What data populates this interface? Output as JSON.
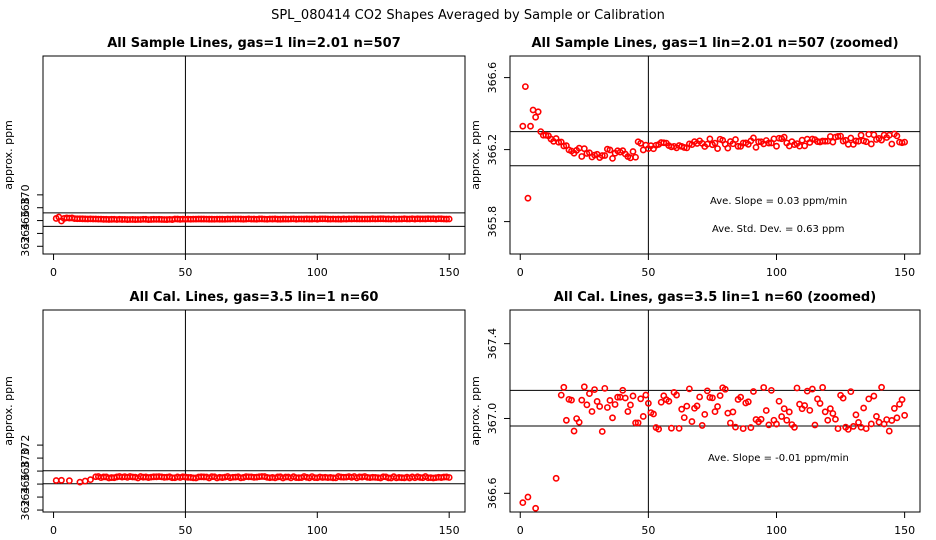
{
  "figure_title": "SPL_080414  CO2 Shapes Averaged by Sample or Calibration",
  "chart_data": [
    {
      "type": "scatter",
      "title": "All Sample Lines, gas=1 lin=2.01 n=507",
      "ylabel": "approx. ppm",
      "xlim": [
        -4,
        156
      ],
      "ylim": [
        360.8,
        391.6
      ],
      "xticks": [
        0,
        50,
        100,
        150
      ],
      "yticks": [
        362,
        364,
        366,
        368,
        370
      ],
      "vline": 50,
      "hlines": [
        365.1,
        367.2
      ],
      "gen": {
        "kind": "sample",
        "base": 366.2,
        "scale": 1
      }
    },
    {
      "type": "scatter",
      "title": "All Sample Lines, gas=1 lin=2.01 n=507 (zoomed)",
      "ylabel": "approx. ppm",
      "xlim": [
        -4,
        156
      ],
      "ylim": [
        365.62,
        366.72
      ],
      "xticks": [
        0,
        50,
        100,
        150
      ],
      "yticks": [
        365.8,
        366.2,
        366.6
      ],
      "vline": 50,
      "hlines": [
        366.11,
        366.3
      ],
      "annotations": [
        "Ave. Slope =  0.03  ppm/min",
        "Ave. Std. Dev. =  0.63  ppm"
      ],
      "gen": {
        "kind": "sample",
        "base": 366.2,
        "scale": 1
      }
    },
    {
      "type": "scatter",
      "title": "All Cal. Lines, gas=3.5 lin=1 n=60",
      "ylabel": "approx. ppm",
      "xlim": [
        -4,
        156
      ],
      "ylim": [
        361.7,
        392.8
      ],
      "xticks": [
        0,
        50,
        100,
        150
      ],
      "yticks": [
        362,
        364,
        366,
        368,
        370,
        372
      ],
      "vline": 50,
      "hlines": [
        366.05,
        368.05
      ],
      "gen": {
        "kind": "cal",
        "base": 367.05,
        "scale": 1
      }
    },
    {
      "type": "scatter",
      "title": "All Cal. Lines, gas=3.5 lin=1 n=60 (zoomed)",
      "ylabel": "approx. ppm",
      "xlim": [
        -4,
        156
      ],
      "ylim": [
        366.5,
        367.58
      ],
      "xticks": [
        0,
        50,
        100,
        150
      ],
      "yticks": [
        366.6,
        367.0,
        367.4
      ],
      "vline": 50,
      "hlines": [
        366.96,
        367.15
      ],
      "annotations": [
        "Ave. Slope =  -0.01  ppm/min"
      ],
      "gen": {
        "kind": "cal",
        "base": 367.05,
        "scale": 1
      }
    }
  ]
}
